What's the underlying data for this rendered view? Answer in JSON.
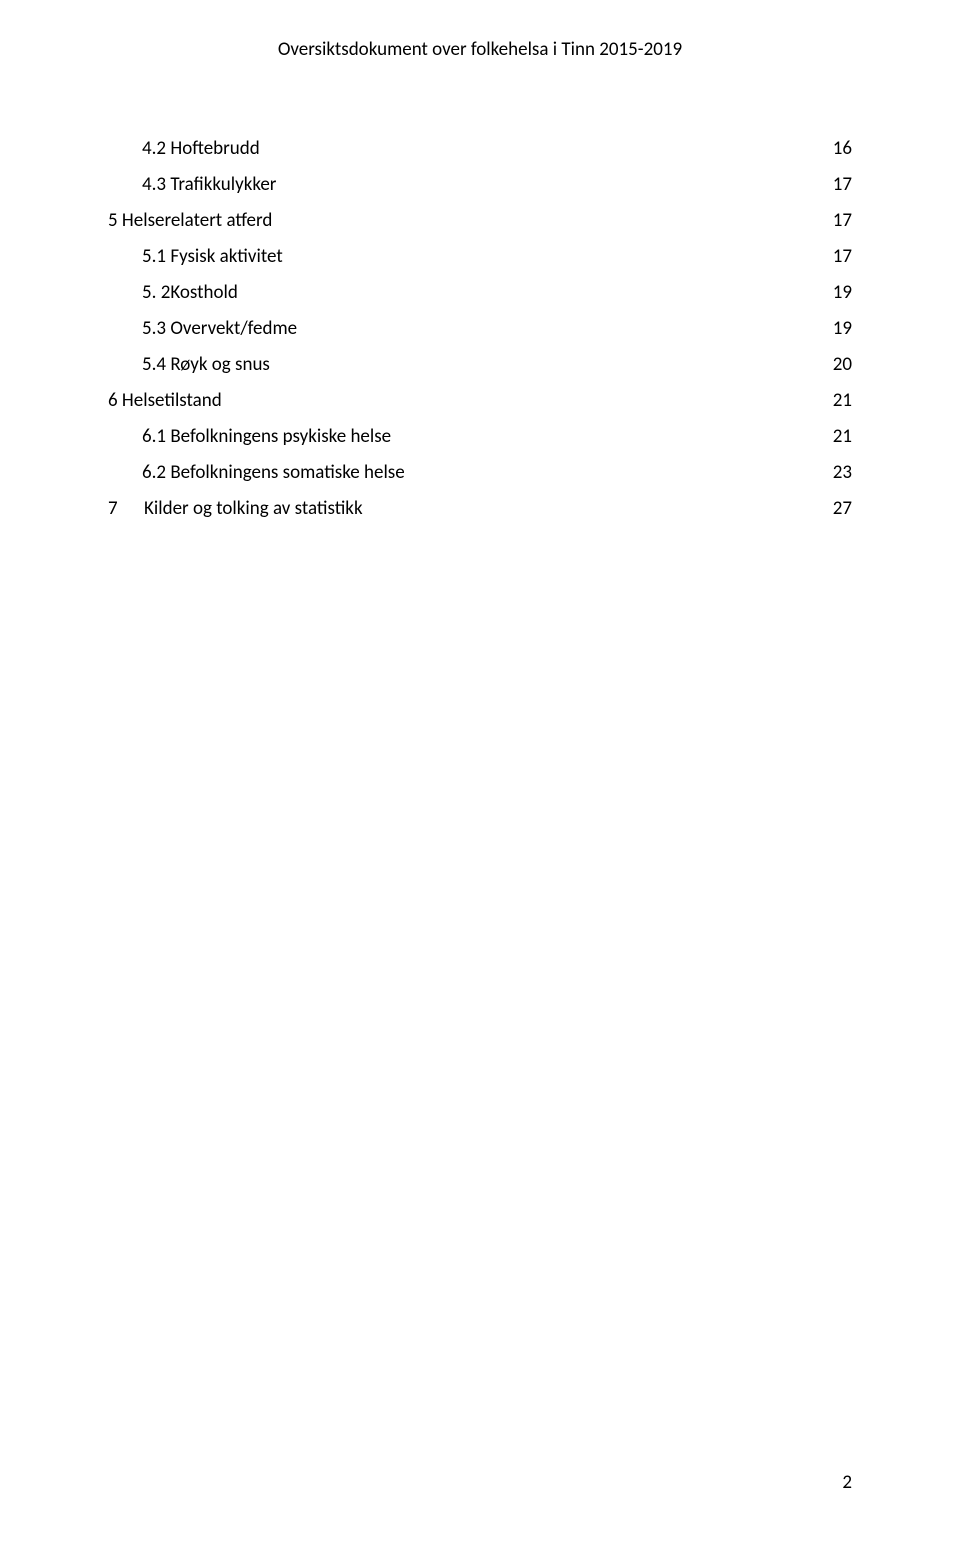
{
  "header": {
    "title": "Oversiktsdokument over folkehelsa i Tinn 2015-2019"
  },
  "toc": {
    "text_color": "#000000",
    "background_color": "#ffffff",
    "font_size_pt": 11,
    "entries": [
      {
        "label": "4.2 Hoftebrudd",
        "page": "16",
        "indent": 1
      },
      {
        "label": "4.3 Trafikkulykker",
        "page": "17",
        "indent": 1
      },
      {
        "label": "5 Helserelatert atferd",
        "page": "17",
        "indent": 0
      },
      {
        "label": "5.1 Fysisk aktivitet",
        "page": "17",
        "indent": 1
      },
      {
        "label": "5. 2Kosthold",
        "page": "19",
        "indent": 1
      },
      {
        "label": "5.3 Overvekt/fedme",
        "page": "19",
        "indent": 1
      },
      {
        "label": "5.4 Røyk og snus",
        "page": "20",
        "indent": 1
      },
      {
        "label": "6 Helsetilstand",
        "page": "21",
        "indent": 0
      },
      {
        "label": "6.1 Befolkningens psykiske helse",
        "page": "21",
        "indent": 1
      },
      {
        "label": "6.2 Befolkningens somatiske helse",
        "page": "23",
        "indent": 1
      },
      {
        "num": "7",
        "label": "Kilder og tolking av statistikk",
        "page": "27",
        "indent": 0,
        "split_num": true
      }
    ]
  },
  "footer": {
    "page_number": "2"
  }
}
